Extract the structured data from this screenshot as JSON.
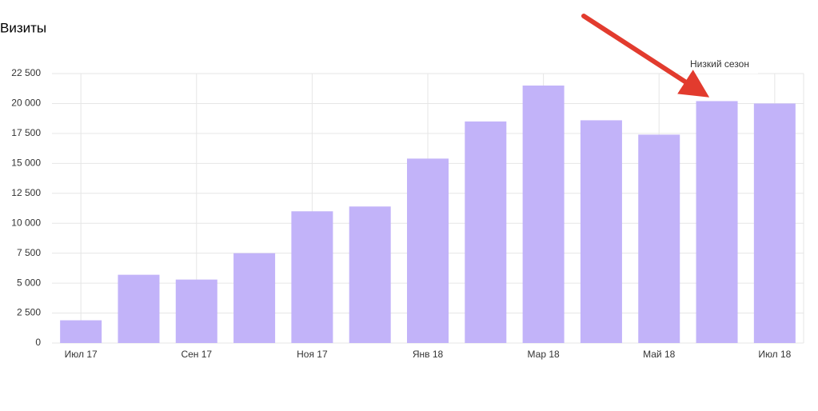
{
  "chart_data": {
    "type": "bar",
    "title": "Визиты",
    "categories": [
      "Июл 17",
      null,
      "Сен 17",
      null,
      "Ноя 17",
      null,
      "Янв 18",
      null,
      "Мар 18",
      null,
      "Май 18",
      null,
      "Июл 18"
    ],
    "values": [
      1900,
      5700,
      5300,
      7500,
      11000,
      11400,
      15400,
      18500,
      21500,
      18600,
      17400,
      20200,
      20000
    ],
    "color": "#c2b3f9",
    "ylim": [
      0,
      22500
    ],
    "yticks": [
      0,
      {
        "value": 2500,
        "label": "2 500"
      },
      {
        "value": 5000,
        "label": "5 000"
      },
      {
        "value": 7500,
        "label": "7 500"
      },
      {
        "value": 10000,
        "label": "10 000"
      },
      {
        "value": 12500,
        "label": "12 500"
      },
      {
        "value": 15000,
        "label": "15 000"
      },
      {
        "value": 17500,
        "label": "17 500"
      },
      {
        "value": 20000,
        "label": "20 000"
      },
      {
        "value": 22500,
        "label": "22 500"
      }
    ],
    "grid": true,
    "annotation": "Низкий сезон"
  }
}
